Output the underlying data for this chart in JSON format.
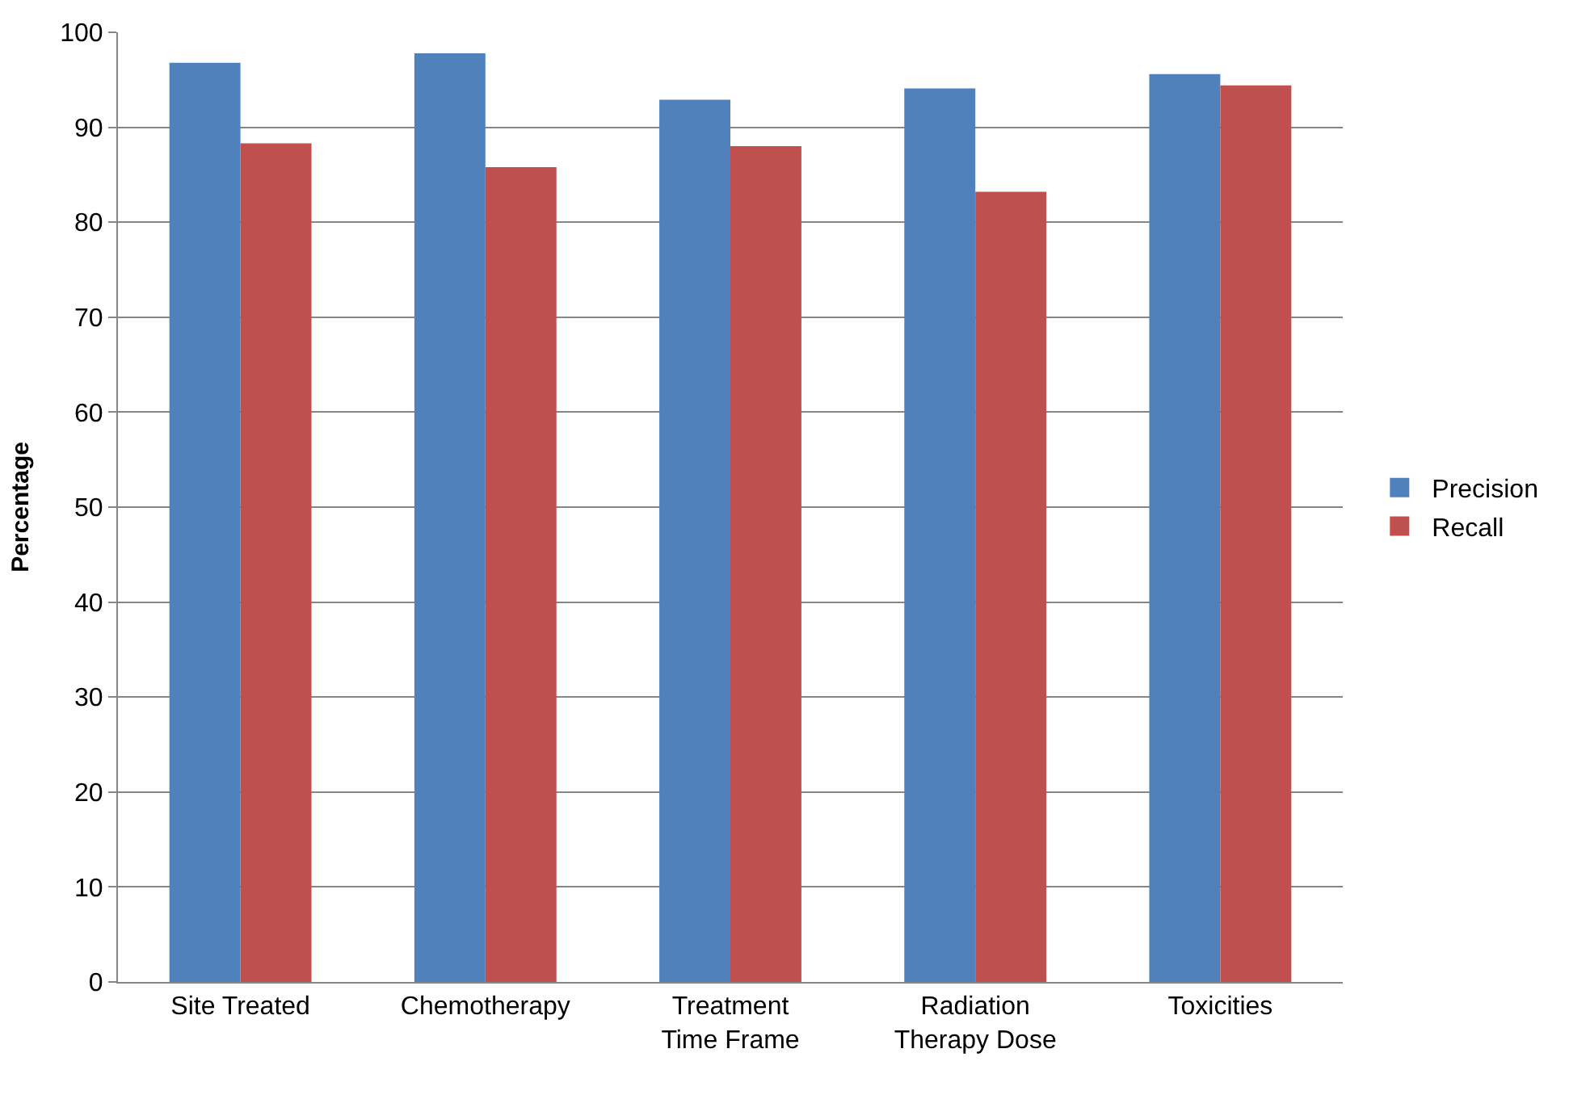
{
  "chart_data": {
    "type": "bar",
    "ylabel": "Percentage",
    "categories": [
      "Site Treated",
      "Chemotherapy",
      "Treatment\nTime Frame",
      "Radiation\nTherapy Dose",
      "Toxicities"
    ],
    "series": [
      {
        "name": "Precision",
        "color": "#4f81bd",
        "values": [
          96.8,
          97.8,
          92.9,
          94.1,
          95.6
        ]
      },
      {
        "name": "Recall",
        "color": "#c0504d",
        "values": [
          88.3,
          85.8,
          88.0,
          83.2,
          94.4
        ]
      }
    ],
    "ylim": [
      0,
      100
    ],
    "yticks": [
      0,
      10,
      20,
      30,
      40,
      50,
      60,
      70,
      80,
      90,
      100
    ],
    "grid": "y",
    "legend": "right"
  }
}
